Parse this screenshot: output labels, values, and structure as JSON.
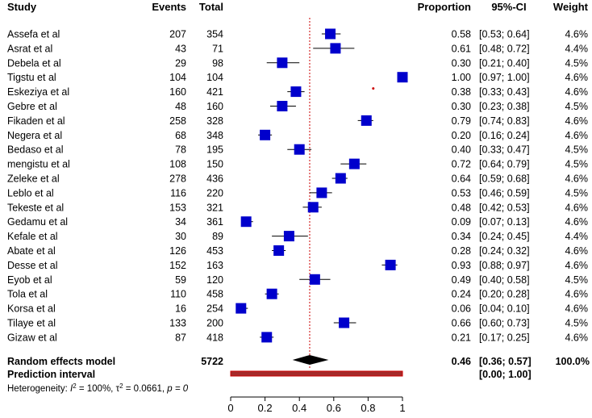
{
  "chart_data": {
    "type": "forest",
    "headers": {
      "study": "Study",
      "events": "Events",
      "total": "Total",
      "proportion": "Proportion",
      "ci": "95%-CI",
      "weight": "Weight"
    },
    "studies": [
      {
        "name": "Assefa et al",
        "events": "207",
        "total": "354",
        "proportion": 0.58,
        "lower": 0.53,
        "upper": 0.64,
        "prop_text": "0.58",
        "ci_text": "[0.53; 0.64]",
        "weight": "4.6%"
      },
      {
        "name": "Asrat et al",
        "events": "43",
        "total": "71",
        "proportion": 0.61,
        "lower": 0.48,
        "upper": 0.72,
        "prop_text": "0.61",
        "ci_text": "[0.48; 0.72]",
        "weight": "4.4%"
      },
      {
        "name": "Debela et al",
        "events": "29",
        "total": "98",
        "proportion": 0.3,
        "lower": 0.21,
        "upper": 0.4,
        "prop_text": "0.30",
        "ci_text": "[0.21; 0.40]",
        "weight": "4.5%"
      },
      {
        "name": "Tigstu et al",
        "events": "104",
        "total": "104",
        "proportion": 1.0,
        "lower": 0.97,
        "upper": 1.0,
        "prop_text": "1.00",
        "ci_text": "[0.97; 1.00]",
        "weight": "4.6%"
      },
      {
        "name": "Eskeziya et al",
        "events": "160",
        "total": "421",
        "proportion": 0.38,
        "lower": 0.33,
        "upper": 0.43,
        "prop_text": "0.38",
        "ci_text": "[0.33; 0.43]",
        "weight": "4.6%"
      },
      {
        "name": "Gebre et al",
        "events": "48",
        "total": "160",
        "proportion": 0.3,
        "lower": 0.23,
        "upper": 0.38,
        "prop_text": "0.30",
        "ci_text": "[0.23; 0.38]",
        "weight": "4.5%"
      },
      {
        "name": "Fikaden et al",
        "events": "258",
        "total": "328",
        "proportion": 0.79,
        "lower": 0.74,
        "upper": 0.83,
        "prop_text": "0.79",
        "ci_text": "[0.74; 0.83]",
        "weight": "4.6%"
      },
      {
        "name": "Negera et al",
        "events": "68",
        "total": "348",
        "proportion": 0.2,
        "lower": 0.16,
        "upper": 0.24,
        "prop_text": "0.20",
        "ci_text": "[0.16; 0.24]",
        "weight": "4.6%"
      },
      {
        "name": "Bedaso et al",
        "events": "78",
        "total": "195",
        "proportion": 0.4,
        "lower": 0.33,
        "upper": 0.47,
        "prop_text": "0.40",
        "ci_text": "[0.33; 0.47]",
        "weight": "4.5%"
      },
      {
        "name": "mengistu et al",
        "events": "108",
        "total": "150",
        "proportion": 0.72,
        "lower": 0.64,
        "upper": 0.79,
        "prop_text": "0.72",
        "ci_text": "[0.64; 0.79]",
        "weight": "4.5%"
      },
      {
        "name": "Zeleke et al",
        "events": "278",
        "total": "436",
        "proportion": 0.64,
        "lower": 0.59,
        "upper": 0.68,
        "prop_text": "0.64",
        "ci_text": "[0.59; 0.68]",
        "weight": "4.6%"
      },
      {
        "name": "Leblo et al",
        "events": "116",
        "total": "220",
        "proportion": 0.53,
        "lower": 0.46,
        "upper": 0.59,
        "prop_text": "0.53",
        "ci_text": "[0.46; 0.59]",
        "weight": "4.5%"
      },
      {
        "name": "Tekeste et al",
        "events": "153",
        "total": "321",
        "proportion": 0.48,
        "lower": 0.42,
        "upper": 0.53,
        "prop_text": "0.48",
        "ci_text": "[0.42; 0.53]",
        "weight": "4.6%"
      },
      {
        "name": "Gedamu et al",
        "events": "34",
        "total": "361",
        "proportion": 0.09,
        "lower": 0.07,
        "upper": 0.13,
        "prop_text": "0.09",
        "ci_text": "[0.07; 0.13]",
        "weight": "4.6%"
      },
      {
        "name": "Kefale et al",
        "events": "30",
        "total": "89",
        "proportion": 0.34,
        "lower": 0.24,
        "upper": 0.45,
        "prop_text": "0.34",
        "ci_text": "[0.24; 0.45]",
        "weight": "4.4%"
      },
      {
        "name": "Abate et al",
        "events": "126",
        "total": "453",
        "proportion": 0.28,
        "lower": 0.24,
        "upper": 0.32,
        "prop_text": "0.28",
        "ci_text": "[0.24; 0.32]",
        "weight": "4.6%"
      },
      {
        "name": "Desse et al",
        "events": "152",
        "total": "163",
        "proportion": 0.93,
        "lower": 0.88,
        "upper": 0.97,
        "prop_text": "0.93",
        "ci_text": "[0.88; 0.97]",
        "weight": "4.6%"
      },
      {
        "name": "Eyob et al",
        "events": "59",
        "total": "120",
        "proportion": 0.49,
        "lower": 0.4,
        "upper": 0.58,
        "prop_text": "0.49",
        "ci_text": "[0.40; 0.58]",
        "weight": "4.5%"
      },
      {
        "name": "Tola et al",
        "events": "110",
        "total": "458",
        "proportion": 0.24,
        "lower": 0.2,
        "upper": 0.28,
        "prop_text": "0.24",
        "ci_text": "[0.20; 0.28]",
        "weight": "4.6%"
      },
      {
        "name": "Korsa et al",
        "events": "16",
        "total": "254",
        "proportion": 0.06,
        "lower": 0.04,
        "upper": 0.1,
        "prop_text": "0.06",
        "ci_text": "[0.04; 0.10]",
        "weight": "4.6%"
      },
      {
        "name": "Tilaye et al",
        "events": "133",
        "total": "200",
        "proportion": 0.66,
        "lower": 0.6,
        "upper": 0.73,
        "prop_text": "0.66",
        "ci_text": "[0.60; 0.73]",
        "weight": "4.5%"
      },
      {
        "name": "Gizaw et al",
        "events": "87",
        "total": "418",
        "proportion": 0.21,
        "lower": 0.17,
        "upper": 0.25,
        "prop_text": "0.21",
        "ci_text": "[0.17; 0.25]",
        "weight": "4.6%"
      }
    ],
    "summary": {
      "label": "Random effects model",
      "total": "5722",
      "estimate": 0.46,
      "lower": 0.36,
      "upper": 0.57,
      "prop_text": "0.46",
      "ci_text": "[0.36; 0.57]",
      "weight": "100.0%"
    },
    "prediction": {
      "label": "Prediction interval",
      "lower": 0.0,
      "upper": 1.0,
      "ci_text": "[0.00; 1.00]"
    },
    "heterogeneity": {
      "prefix": "Heterogeneity: ",
      "i2_symbol": "I",
      "i2_value": " = 100%, ",
      "tau2_symbol": "τ",
      "tau2_value": " = 0.0661, ",
      "p_text": "p = 0"
    },
    "x_axis": {
      "range": [
        0,
        1
      ],
      "ticks": [
        0,
        0.2,
        0.4,
        0.6,
        0.8,
        1
      ],
      "tick_labels": [
        "0",
        "0.2",
        "0.4",
        "0.6",
        "0.8",
        "1"
      ]
    },
    "reference_line": 0.46,
    "colors": {
      "square": "#0000cc",
      "ci_line": "#000000",
      "reference_line": "#cc0000",
      "diamond": "#000000",
      "prediction_fill": "#a52a2a",
      "prediction_outline": "#cc0000",
      "stray_dot": "#cc0000"
    },
    "stray_dot": {
      "x": 0.83,
      "row": 4
    }
  }
}
